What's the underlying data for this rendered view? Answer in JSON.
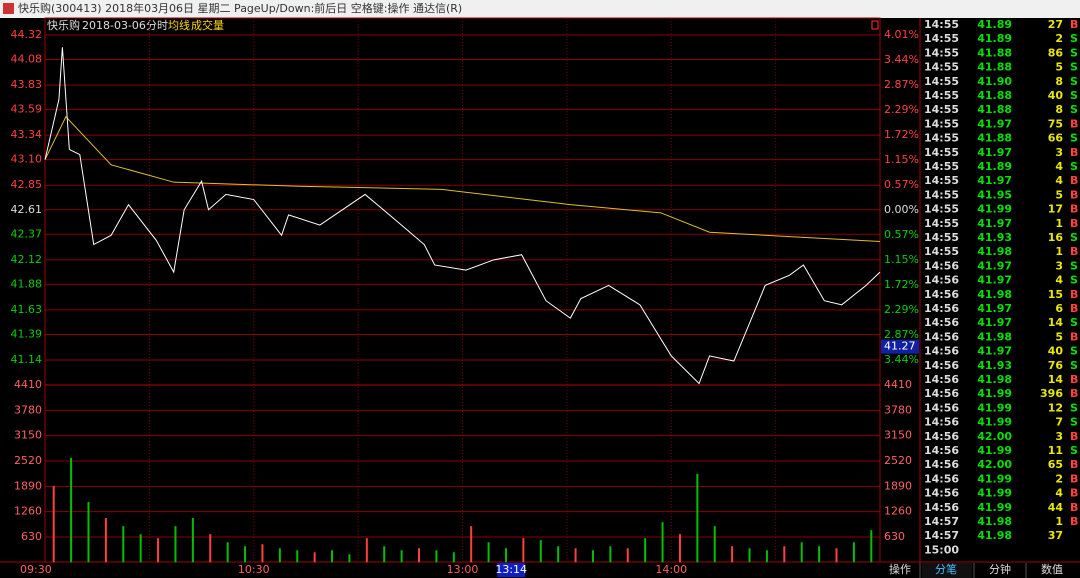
{
  "window_title": "快乐购(300413) 2018年03月06日 星期二 PageUp/Down:前后日 空格键:操作 通达信(R)",
  "chart_header": {
    "name": "快乐购",
    "date": "2018-03-06",
    "mode": "分时",
    "avg_label": "均线",
    "volume_label": "成交量"
  },
  "price_ticks": [
    44.32,
    44.08,
    43.83,
    43.59,
    43.34,
    {
      "value": 43.1,
      "label": "43.10"
    },
    42.85,
    42.61,
    42.37,
    42.12,
    41.88,
    41.63,
    41.39,
    41.14
  ],
  "percent_ticks": [
    {
      "value": 4.01,
      "label": "4.01%"
    },
    {
      "value": 3.44,
      "label": "3.44%"
    },
    {
      "value": 2.87,
      "label": "2.87%"
    },
    {
      "value": 2.29,
      "label": "2.29%"
    },
    {
      "value": 1.72,
      "label": "1.72%"
    },
    {
      "value": 1.15,
      "label": "1.15%"
    },
    {
      "value": 0.57,
      "label": "0.57%"
    },
    {
      "value": 0,
      "label": "0.00%"
    },
    {
      "value": -0.57,
      "label": "0.57%"
    },
    {
      "value": -1.15,
      "label": "1.15%"
    },
    {
      "value": -1.72,
      "label": "1.72%"
    },
    {
      "value": -2.29,
      "label": "2.29%"
    },
    {
      "value": -2.87,
      "label": "2.87%"
    },
    {
      "value": -3.44,
      "label": "3.44%"
    }
  ],
  "volume_ticks": [
    4410,
    3780,
    3150,
    2520,
    1890,
    1260,
    630
  ],
  "cursor_price": 41.27,
  "price_line": {
    "x": [
      "09:30",
      "09:34",
      "09:35",
      "09:37",
      "09:40",
      "09:44",
      "09:49",
      "09:54",
      "10:02",
      "10:07",
      "10:10",
      "10:15",
      "10:17",
      "10:22",
      "10:30",
      "10:38",
      "10:40",
      "10:49",
      "11:02",
      "11:09",
      "11:19",
      "11:22",
      "13:01",
      "13:09",
      "13:17",
      "13:24",
      "13:31",
      "13:34",
      "13:42",
      "13:51",
      "14:00",
      "14:08",
      "14:11",
      "14:18",
      "14:27",
      "14:34",
      "14:38",
      "14:44",
      "14:49",
      "14:56",
      "15:00"
    ],
    "values": [
      43.1,
      43.69,
      44.2,
      43.2,
      43.15,
      42.27,
      42.36,
      42.66,
      42.31,
      42.0,
      42.61,
      42.89,
      42.61,
      42.76,
      42.71,
      42.36,
      42.56,
      42.46,
      42.76,
      42.56,
      42.27,
      42.07,
      42.02,
      42.12,
      42.17,
      41.72,
      41.55,
      41.74,
      41.87,
      41.68,
      41.18,
      40.91,
      41.18,
      41.13,
      41.87,
      41.97,
      42.07,
      41.72,
      41.68,
      41.87,
      42.0
    ]
  },
  "avg_line": {
    "x": [
      "09:30",
      "09:36",
      "09:49",
      "10:07",
      "10:43",
      "11:24",
      "13:31",
      "13:57",
      "14:11",
      "15:00"
    ],
    "values": [
      43.1,
      43.52,
      43.05,
      42.88,
      42.84,
      42.81,
      42.66,
      42.58,
      42.39,
      42.3
    ]
  },
  "volumes": [
    1900,
    2600,
    1500,
    1100,
    900,
    700,
    600,
    900,
    1100,
    700,
    500,
    400,
    450,
    350,
    300,
    250,
    300,
    200,
    600,
    400,
    300,
    350,
    300,
    250,
    900,
    500,
    350,
    600,
    550,
    400,
    350,
    300,
    400,
    350,
    600,
    1000,
    700,
    2200,
    900,
    400,
    350,
    300,
    400,
    500,
    400,
    350,
    500,
    800
  ],
  "time_axis": [
    "09:30",
    "10:30",
    "13:00",
    "14:00"
  ],
  "cursor_time": "13:14",
  "trades": [
    [
      "14:55",
      "41.89",
      "27",
      "B"
    ],
    [
      "14:55",
      "41.89",
      "2",
      "S"
    ],
    [
      "14:55",
      "41.88",
      "86",
      "S"
    ],
    [
      "14:55",
      "41.88",
      "5",
      "S"
    ],
    [
      "14:55",
      "41.90",
      "8",
      "S"
    ],
    [
      "14:55",
      "41.88",
      "40",
      "S"
    ],
    [
      "14:55",
      "41.88",
      "8",
      "S"
    ],
    [
      "14:55",
      "41.97",
      "75",
      "B"
    ],
    [
      "14:55",
      "41.88",
      "66",
      "S"
    ],
    [
      "14:55",
      "41.97",
      "3",
      "B"
    ],
    [
      "14:55",
      "41.89",
      "4",
      "S"
    ],
    [
      "14:55",
      "41.97",
      "4",
      "B"
    ],
    [
      "14:55",
      "41.95",
      "5",
      "B"
    ],
    [
      "14:55",
      "41.99",
      "17",
      "B"
    ],
    [
      "14:55",
      "41.97",
      "1",
      "B"
    ],
    [
      "14:55",
      "41.93",
      "16",
      "S"
    ],
    [
      "14:55",
      "41.98",
      "1",
      "B"
    ],
    [
      "14:56",
      "41.97",
      "3",
      "S"
    ],
    [
      "14:56",
      "41.97",
      "4",
      "S"
    ],
    [
      "14:56",
      "41.98",
      "15",
      "B"
    ],
    [
      "14:56",
      "41.97",
      "6",
      "B"
    ],
    [
      "14:56",
      "41.97",
      "14",
      "S"
    ],
    [
      "14:56",
      "41.98",
      "5",
      "B"
    ],
    [
      "14:56",
      "41.97",
      "40",
      "S"
    ],
    [
      "14:56",
      "41.93",
      "76",
      "S"
    ],
    [
      "14:56",
      "41.98",
      "14",
      "B"
    ],
    [
      "14:56",
      "41.99",
      "396",
      "B"
    ],
    [
      "14:56",
      "41.99",
      "12",
      "S"
    ],
    [
      "14:56",
      "41.99",
      "7",
      "S"
    ],
    [
      "14:56",
      "42.00",
      "3",
      "B"
    ],
    [
      "14:56",
      "41.99",
      "11",
      "S"
    ],
    [
      "14:56",
      "42.00",
      "65",
      "B"
    ],
    [
      "14:56",
      "41.99",
      "2",
      "B"
    ],
    [
      "14:56",
      "41.99",
      "4",
      "B"
    ],
    [
      "14:56",
      "41.99",
      "44",
      "B"
    ],
    [
      "14:57",
      "41.98",
      "1",
      "B"
    ],
    [
      "14:57",
      "41.98",
      "37"
    ],
    [
      "15:00"
    ]
  ],
  "tabs": [
    "操作",
    "分笔",
    "分钟",
    "数值"
  ]
}
